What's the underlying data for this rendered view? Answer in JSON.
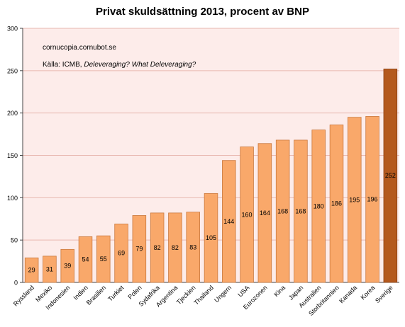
{
  "chart_data": {
    "type": "bar",
    "title": "Privat skuldsättning 2013, procent av BNP",
    "annotations": {
      "site": "cornucopia.cornubot.se",
      "source_prefix": "Källa: ICMB, ",
      "source_title": "Deleveraging? What Deleveraging?"
    },
    "categories": [
      "Ryssland",
      "Mexiko",
      "Indonesien",
      "Indien",
      "Brasilien",
      "Turkiet",
      "Polen",
      "Sydafrika",
      "Argentina",
      "Tjeckien",
      "Thailand",
      "Ungern",
      "USA",
      "Eurozonen",
      "Kina",
      "Japan",
      "Australien",
      "Storbritannien",
      "Kanada",
      "Korea",
      "Sverige"
    ],
    "values": [
      29,
      31,
      39,
      54,
      55,
      69,
      79,
      82,
      82,
      83,
      105,
      144,
      160,
      164,
      168,
      168,
      180,
      186,
      195,
      196,
      252
    ],
    "data_labels": [
      "29",
      "31",
      "39",
      "54",
      "55",
      "69",
      "79",
      "82",
      "82",
      "83",
      "105",
      "144",
      "160",
      "164",
      "168",
      "168",
      "180",
      "186",
      "195",
      "196",
      "252"
    ],
    "ylim": [
      0,
      300
    ],
    "yticks": [
      "0",
      "50",
      "100",
      "150",
      "200",
      "250",
      "300"
    ],
    "grid": true,
    "legend": "none",
    "colors": {
      "bar": "#f9a86a",
      "bar_border": "#c9793f",
      "highlight_bar": "#b4591d",
      "highlight_border": "#8a4014",
      "plot_bg": "#fdecea",
      "grid": "#e8b8b0"
    }
  }
}
